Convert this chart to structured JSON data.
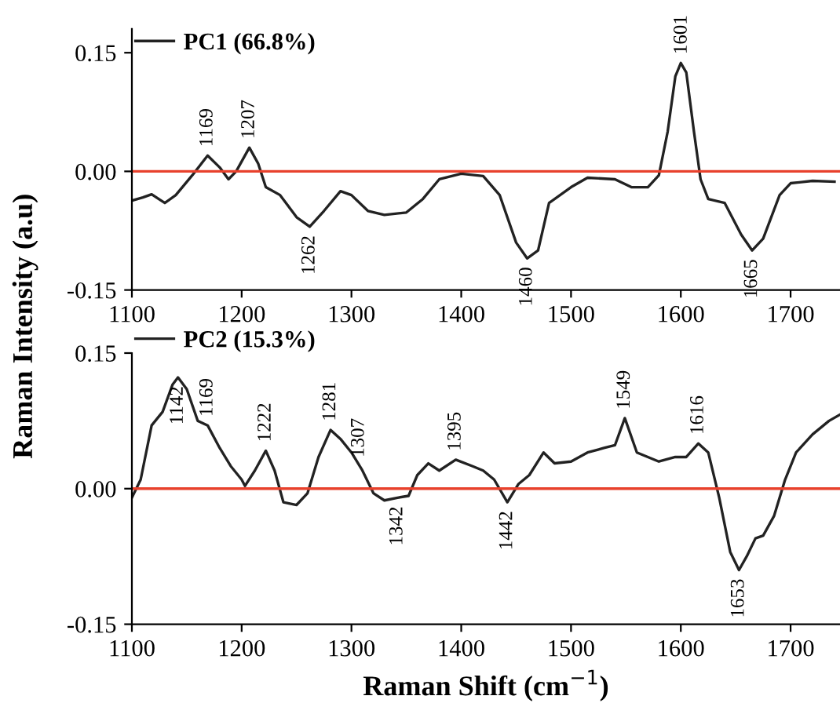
{
  "chart_data": [
    {
      "type": "line",
      "ylabel": "Raman Intensity (a.u)",
      "xlim": [
        1100,
        1745
      ],
      "xticks": [
        1100,
        1200,
        1300,
        1400,
        1500,
        1600,
        1700
      ],
      "ylim": [
        -0.15,
        0.18
      ],
      "yticks": [
        {
          "value": -0.15,
          "label": "-0.15"
        },
        {
          "value": 0,
          "label": "0.00"
        },
        {
          "value": 0.15,
          "label": "0.15"
        }
      ],
      "grid": false,
      "legend": "top left",
      "line_style": "solid",
      "marker": "none",
      "series": [
        {
          "name": "PC1 (66.8%)",
          "color": "#222222",
          "x": [
            1100,
            1110,
            1118,
            1130,
            1140,
            1155,
            1169,
            1180,
            1188,
            1195,
            1207,
            1215,
            1222,
            1235,
            1250,
            1262,
            1275,
            1290,
            1300,
            1315,
            1330,
            1350,
            1365,
            1380,
            1400,
            1420,
            1435,
            1450,
            1460,
            1470,
            1480,
            1500,
            1515,
            1540,
            1555,
            1570,
            1580,
            1588,
            1595,
            1600,
            1605,
            1612,
            1618,
            1625,
            1640,
            1655,
            1665,
            1675,
            1690,
            1700,
            1720,
            1740
          ],
          "values": [
            -0.037,
            -0.033,
            -0.029,
            -0.04,
            -0.03,
            -0.005,
            0.02,
            0.005,
            -0.01,
            0.0,
            0.03,
            0.01,
            -0.02,
            -0.03,
            -0.058,
            -0.07,
            -0.05,
            -0.025,
            -0.03,
            -0.05,
            -0.055,
            -0.052,
            -0.035,
            -0.01,
            -0.003,
            -0.006,
            -0.03,
            -0.09,
            -0.11,
            -0.1,
            -0.04,
            -0.02,
            -0.008,
            -0.01,
            -0.02,
            -0.02,
            -0.005,
            0.05,
            0.12,
            0.137,
            0.125,
            0.05,
            -0.01,
            -0.035,
            -0.04,
            -0.08,
            -0.1,
            -0.085,
            -0.03,
            -0.015,
            -0.012,
            -0.013
          ]
        }
      ],
      "ref_lines": [
        {
          "axis": "y",
          "value": 0,
          "color": "#e8412c"
        }
      ],
      "annotations": [
        {
          "text": "1169",
          "x": 1169,
          "y": 0.02
        },
        {
          "text": "1207",
          "x": 1207,
          "y": 0.03
        },
        {
          "text": "1262",
          "x": 1262,
          "y": -0.07
        },
        {
          "text": "1460",
          "x": 1460,
          "y": -0.11
        },
        {
          "text": "1601",
          "x": 1601,
          "y": 0.137
        },
        {
          "text": "1665",
          "x": 1665,
          "y": -0.1
        }
      ]
    },
    {
      "type": "line",
      "xlabel": "Raman Shift (cm$^{−1}$)",
      "xlim": [
        1100,
        1745
      ],
      "xticks": [
        1100,
        1200,
        1300,
        1400,
        1500,
        1600,
        1700
      ],
      "ylim": [
        -0.15,
        0.15
      ],
      "yticks": [
        {
          "value": -0.15,
          "label": "-0.15"
        },
        {
          "value": 0,
          "label": "0.00"
        },
        {
          "value": 0.15,
          "label": "0.15"
        }
      ],
      "grid": false,
      "legend": "top left",
      "line_style": "solid",
      "marker": "none",
      "series": [
        {
          "name": "PC2 (15.3%)",
          "color": "#222222",
          "x": [
            1100,
            1108,
            1118,
            1128,
            1137,
            1142,
            1150,
            1160,
            1169,
            1180,
            1190,
            1200,
            1203,
            1212,
            1222,
            1230,
            1238,
            1250,
            1260,
            1270,
            1281,
            1290,
            1300,
            1310,
            1320,
            1330,
            1342,
            1352,
            1360,
            1370,
            1380,
            1395,
            1410,
            1420,
            1430,
            1442,
            1452,
            1462,
            1475,
            1485,
            1500,
            1515,
            1530,
            1540,
            1549,
            1560,
            1570,
            1580,
            1595,
            1605,
            1616,
            1625,
            1635,
            1645,
            1653,
            1660,
            1668,
            1675,
            1685,
            1695,
            1705,
            1720,
            1735,
            1745
          ],
          "values": [
            -0.01,
            0.01,
            0.07,
            0.085,
            0.115,
            0.123,
            0.11,
            0.075,
            0.07,
            0.045,
            0.025,
            0.01,
            0.003,
            0.02,
            0.042,
            0.02,
            -0.015,
            -0.018,
            -0.005,
            0.035,
            0.065,
            0.055,
            0.04,
            0.02,
            -0.005,
            -0.013,
            -0.01,
            -0.008,
            0.015,
            0.028,
            0.02,
            0.032,
            0.025,
            0.02,
            0.01,
            -0.015,
            0.005,
            0.015,
            0.04,
            0.028,
            0.03,
            0.04,
            0.045,
            0.048,
            0.078,
            0.04,
            0.035,
            0.03,
            0.035,
            0.035,
            0.05,
            0.04,
            -0.01,
            -0.07,
            -0.09,
            -0.075,
            -0.055,
            -0.052,
            -0.03,
            0.01,
            0.04,
            0.06,
            0.075,
            0.082
          ]
        }
      ],
      "ref_lines": [
        {
          "axis": "y",
          "value": 0,
          "color": "#e8412c"
        }
      ],
      "annotations": [
        {
          "text": "1142",
          "x": 1142,
          "y": 0.123
        },
        {
          "text": "1169",
          "x": 1169,
          "y": 0.07
        },
        {
          "text": "1222",
          "x": 1222,
          "y": 0.042
        },
        {
          "text": "1281",
          "x": 1281,
          "y": 0.065
        },
        {
          "text": "1307",
          "x": 1307,
          "y": 0.025
        },
        {
          "text": "1342",
          "x": 1342,
          "y": -0.01
        },
        {
          "text": "1395",
          "x": 1395,
          "y": 0.032
        },
        {
          "text": "1442",
          "x": 1442,
          "y": -0.015
        },
        {
          "text": "1549",
          "x": 1549,
          "y": 0.078
        },
        {
          "text": "1616",
          "x": 1616,
          "y": 0.05
        },
        {
          "text": "1653",
          "x": 1653,
          "y": -0.09
        }
      ]
    }
  ]
}
